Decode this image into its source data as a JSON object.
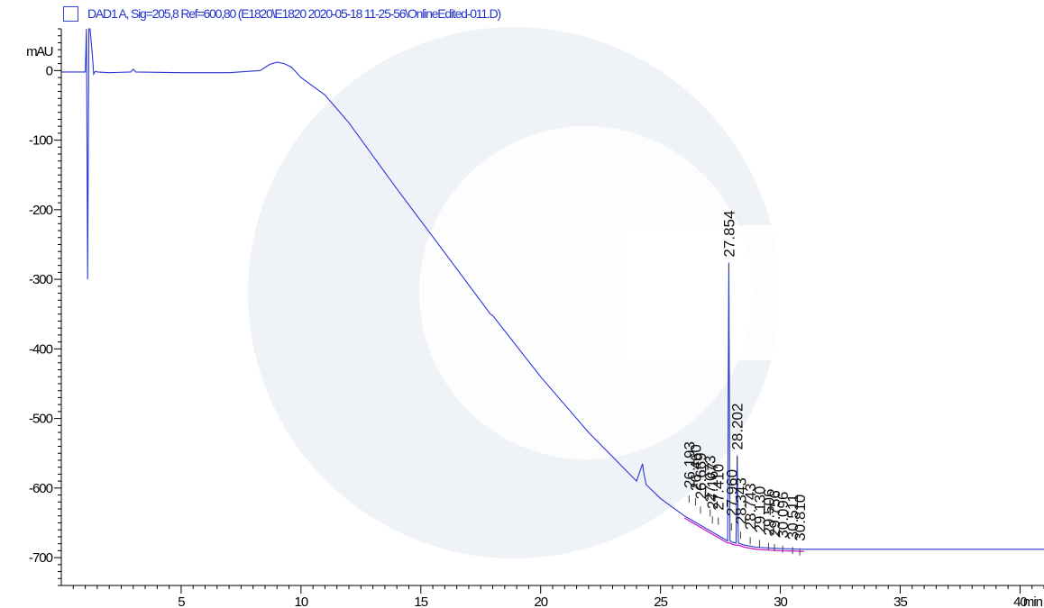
{
  "legend": {
    "text": "DAD1 A, Sig=205,8 Ref=600,80 (E1820\\E1820 2020-05-18 11-25-56\\OnlineEdited-011.D)"
  },
  "colors": {
    "trace": "#2a35d6",
    "baseline": "#cc22cc",
    "axis": "#000000",
    "watermark": "#e8ecf2"
  },
  "chart_data": {
    "type": "line",
    "title": "",
    "xlabel": "min",
    "ylabel": "mAU",
    "xlim": [
      0,
      41
    ],
    "ylim": [
      -740,
      60
    ],
    "x_ticks": [
      5,
      10,
      15,
      20,
      25,
      30,
      35,
      40
    ],
    "y_ticks": [
      0,
      -100,
      -200,
      -300,
      -400,
      -500,
      -600,
      -700
    ],
    "grid": false,
    "series": [
      {
        "name": "DAD1 A, Sig=205,8 Ref=600,80",
        "x": [
          0,
          1.0,
          1.05,
          1.1,
          1.15,
          1.2,
          1.3,
          1.35,
          1.4,
          1.45,
          1.5,
          2.0,
          2.9,
          3.0,
          3.1,
          5.0,
          7.0,
          8.3,
          8.7,
          9.0,
          9.3,
          9.6,
          10.0,
          11.0,
          12.0,
          14.0,
          16.0,
          17.8,
          17.9,
          18.0,
          20.0,
          22.0,
          24.0,
          24.2,
          24.25,
          24.3,
          24.4,
          25.0,
          26.0,
          26.5,
          27.0,
          27.5,
          27.8,
          27.85,
          27.9,
          28.0,
          28.15,
          28.2,
          28.25,
          28.5,
          29.0,
          30.0,
          31.0,
          32.0,
          35.0,
          38.0,
          41.0
        ],
        "y": [
          -2,
          -2,
          60,
          -300,
          60,
          60,
          20,
          -5,
          -2,
          -1,
          -2,
          -3,
          -2,
          2,
          -2,
          -3,
          -3,
          0,
          9,
          12,
          10,
          5,
          -10,
          -35,
          -75,
          -170,
          -262,
          -345,
          -350,
          -352,
          -440,
          -520,
          -590,
          -570,
          -565,
          -578,
          -595,
          -615,
          -640,
          -650,
          -660,
          -670,
          -676,
          -276,
          -676,
          -678,
          -679,
          -553,
          -679,
          -682,
          -685,
          -687,
          -688,
          -688,
          -688,
          -688,
          -688
        ]
      }
    ],
    "peaks": [
      "26.193",
      "26.460",
      "26.669",
      "27.073",
      "27.167",
      "27.410",
      "27.960",
      "27.854",
      "28.202",
      "28.343",
      "28.743",
      "29.130",
      "29.506",
      "29.756",
      "30.096",
      "30.511",
      "30.810"
    ],
    "peak_x": [
      26.193,
      26.46,
      26.669,
      27.073,
      27.167,
      27.41,
      27.96,
      27.854,
      28.202,
      28.343,
      28.743,
      29.13,
      29.506,
      29.756,
      30.096,
      30.511,
      30.81
    ],
    "peak_top_y": [
      -608,
      -612,
      -624,
      -628,
      -638,
      -640,
      -648,
      -276,
      -553,
      -660,
      -668,
      -672,
      -676,
      -678,
      -680,
      -682,
      -684
    ]
  }
}
